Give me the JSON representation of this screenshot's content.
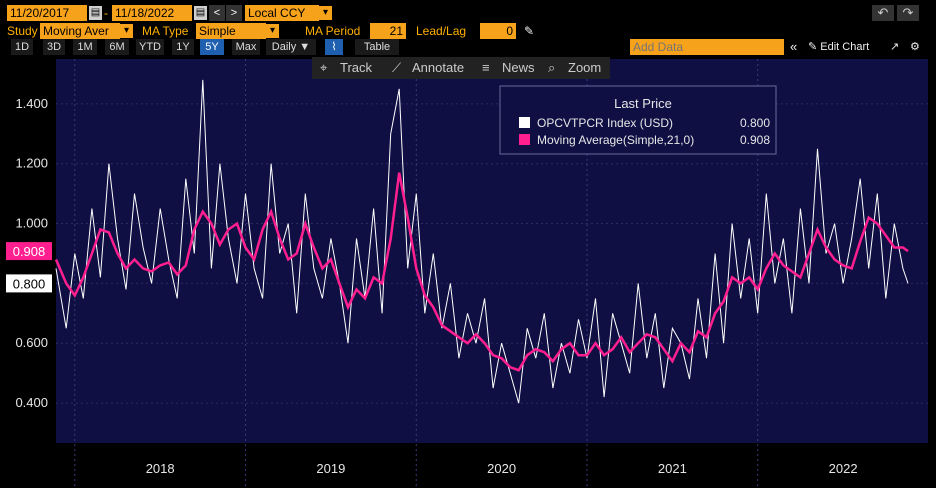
{
  "toolbar": {
    "start_date": "11/20/2017",
    "date_sep": "-",
    "end_date": "11/18/2022",
    "prev": "<",
    "next": ">",
    "currency": "Local CCY",
    "undo": "↶",
    "redo": "↷"
  },
  "study": {
    "study_label": "Study",
    "study_value": "Moving Aver",
    "ma_type_label": "MA Type",
    "ma_type_value": "Simple",
    "ma_period_label": "MA Period",
    "ma_period_value": "21",
    "leadlag_label": "Lead/Lag",
    "leadlag_value": "0"
  },
  "periods": {
    "items": [
      "1D",
      "3D",
      "1M",
      "6M",
      "YTD",
      "1Y",
      "5Y",
      "Max"
    ],
    "selected": "5Y",
    "frequency": "Daily ▼",
    "table": "Table",
    "add_data_placeholder": "Add Data",
    "collapse": "«",
    "edit_chart": "✎ Edit Chart",
    "expand_icon": "↗",
    "settings_icon": "⚙"
  },
  "chart_tools": {
    "track": "Track",
    "annotate": "Annotate",
    "news": "News",
    "zoom": "Zoom"
  },
  "legend": {
    "title": "Last Price",
    "series1_name": "OPCVTPCR Index (USD)",
    "series1_value": "0.800",
    "series2_name": "Moving Average(Simple,21,0)",
    "series2_value": "0.908"
  },
  "price_tags": {
    "ma": "0.908",
    "last": "0.800"
  },
  "colors": {
    "plot_bg": "#0f0f44",
    "price_line": "#ffffff",
    "ma_line": "#ff1f8f",
    "accent": "#f7a21b"
  },
  "chart_data": {
    "type": "line",
    "x_tick_labels": [
      "2018",
      "2019",
      "2020",
      "2021",
      "2022"
    ],
    "y_tick_labels": [
      "0.400",
      "0.600",
      "0.800",
      "1.000",
      "1.200",
      "1.400"
    ],
    "ylim": [
      0.3,
      1.55
    ],
    "x_range": [
      2017.89,
      2022.88
    ],
    "series": [
      {
        "name": "OPCVTPCR Index (USD)",
        "x": [
          2017.89,
          2017.95,
          2018.0,
          2018.05,
          2018.1,
          2018.15,
          2018.2,
          2018.25,
          2018.3,
          2018.35,
          2018.4,
          2018.45,
          2018.5,
          2018.55,
          2018.6,
          2018.65,
          2018.7,
          2018.75,
          2018.8,
          2018.85,
          2018.9,
          2018.95,
          2019.0,
          2019.05,
          2019.1,
          2019.15,
          2019.2,
          2019.25,
          2019.3,
          2019.35,
          2019.4,
          2019.45,
          2019.5,
          2019.55,
          2019.6,
          2019.65,
          2019.7,
          2019.75,
          2019.8,
          2019.85,
          2019.9,
          2019.95,
          2020.0,
          2020.05,
          2020.1,
          2020.15,
          2020.2,
          2020.25,
          2020.3,
          2020.35,
          2020.4,
          2020.45,
          2020.5,
          2020.55,
          2020.6,
          2020.65,
          2020.7,
          2020.75,
          2020.8,
          2020.85,
          2020.9,
          2020.95,
          2021.0,
          2021.05,
          2021.1,
          2021.15,
          2021.2,
          2021.25,
          2021.3,
          2021.35,
          2021.4,
          2021.45,
          2021.5,
          2021.55,
          2021.6,
          2021.65,
          2021.7,
          2021.75,
          2021.8,
          2021.85,
          2021.9,
          2021.95,
          2022.0,
          2022.05,
          2022.1,
          2022.15,
          2022.2,
          2022.25,
          2022.3,
          2022.35,
          2022.4,
          2022.45,
          2022.5,
          2022.55,
          2022.6,
          2022.65,
          2022.7,
          2022.75,
          2022.8,
          2022.85,
          2022.88
        ],
        "values": [
          0.85,
          0.65,
          0.9,
          0.75,
          1.05,
          0.82,
          1.2,
          0.95,
          0.78,
          1.1,
          0.92,
          0.8,
          1.05,
          0.88,
          0.75,
          1.15,
          0.9,
          1.48,
          0.85,
          1.2,
          0.95,
          0.8,
          1.1,
          0.85,
          0.75,
          1.2,
          0.9,
          1.0,
          0.7,
          1.1,
          0.85,
          0.75,
          0.95,
          0.8,
          0.6,
          0.95,
          0.75,
          1.05,
          0.7,
          1.3,
          1.45,
          0.85,
          1.1,
          0.7,
          0.9,
          0.65,
          0.8,
          0.55,
          0.7,
          0.6,
          0.75,
          0.45,
          0.6,
          0.5,
          0.4,
          0.65,
          0.55,
          0.7,
          0.45,
          0.6,
          0.5,
          0.68,
          0.55,
          0.75,
          0.42,
          0.7,
          0.6,
          0.5,
          0.8,
          0.55,
          0.7,
          0.45,
          0.65,
          0.6,
          0.48,
          0.75,
          0.55,
          0.9,
          0.6,
          1.0,
          0.75,
          0.95,
          0.7,
          1.1,
          0.8,
          0.95,
          0.7,
          1.05,
          0.8,
          1.25,
          0.9,
          1.0,
          0.8,
          0.95,
          1.15,
          0.85,
          1.1,
          0.75,
          1.0,
          0.85,
          0.8
        ]
      },
      {
        "name": "Moving Average(Simple,21,0)",
        "x": [
          2017.89,
          2017.95,
          2018.0,
          2018.05,
          2018.1,
          2018.15,
          2018.2,
          2018.25,
          2018.3,
          2018.35,
          2018.4,
          2018.45,
          2018.5,
          2018.55,
          2018.6,
          2018.65,
          2018.7,
          2018.75,
          2018.8,
          2018.85,
          2018.9,
          2018.95,
          2019.0,
          2019.05,
          2019.1,
          2019.15,
          2019.2,
          2019.25,
          2019.3,
          2019.35,
          2019.4,
          2019.45,
          2019.5,
          2019.55,
          2019.6,
          2019.65,
          2019.7,
          2019.75,
          2019.8,
          2019.85,
          2019.9,
          2019.95,
          2020.0,
          2020.05,
          2020.1,
          2020.15,
          2020.2,
          2020.25,
          2020.3,
          2020.35,
          2020.4,
          2020.45,
          2020.5,
          2020.55,
          2020.6,
          2020.65,
          2020.7,
          2020.75,
          2020.8,
          2020.85,
          2020.9,
          2020.95,
          2021.0,
          2021.05,
          2021.1,
          2021.15,
          2021.2,
          2021.25,
          2021.3,
          2021.35,
          2021.4,
          2021.45,
          2021.5,
          2021.55,
          2021.6,
          2021.65,
          2021.7,
          2021.75,
          2021.8,
          2021.85,
          2021.9,
          2021.95,
          2022.0,
          2022.05,
          2022.1,
          2022.15,
          2022.2,
          2022.25,
          2022.3,
          2022.35,
          2022.4,
          2022.45,
          2022.5,
          2022.55,
          2022.6,
          2022.65,
          2022.7,
          2022.75,
          2022.8,
          2022.85,
          2022.88
        ],
        "values": [
          0.88,
          0.8,
          0.76,
          0.82,
          0.9,
          0.98,
          0.97,
          0.9,
          0.85,
          0.88,
          0.85,
          0.84,
          0.86,
          0.87,
          0.83,
          0.86,
          0.98,
          1.04,
          1.0,
          0.93,
          0.98,
          1.0,
          0.92,
          0.88,
          0.98,
          1.04,
          0.95,
          0.88,
          0.9,
          1.0,
          0.92,
          0.85,
          0.88,
          0.8,
          0.72,
          0.78,
          0.75,
          0.82,
          0.8,
          0.95,
          1.17,
          1.02,
          0.85,
          0.76,
          0.72,
          0.66,
          0.64,
          0.62,
          0.6,
          0.63,
          0.6,
          0.56,
          0.55,
          0.52,
          0.51,
          0.56,
          0.58,
          0.57,
          0.54,
          0.58,
          0.6,
          0.56,
          0.56,
          0.6,
          0.56,
          0.58,
          0.62,
          0.57,
          0.6,
          0.63,
          0.62,
          0.58,
          0.54,
          0.6,
          0.57,
          0.64,
          0.62,
          0.7,
          0.74,
          0.82,
          0.8,
          0.82,
          0.78,
          0.85,
          0.9,
          0.86,
          0.84,
          0.82,
          0.9,
          0.98,
          0.92,
          0.88,
          0.86,
          0.85,
          0.94,
          1.02,
          1.0,
          0.96,
          0.92,
          0.92,
          0.908
        ]
      }
    ]
  }
}
